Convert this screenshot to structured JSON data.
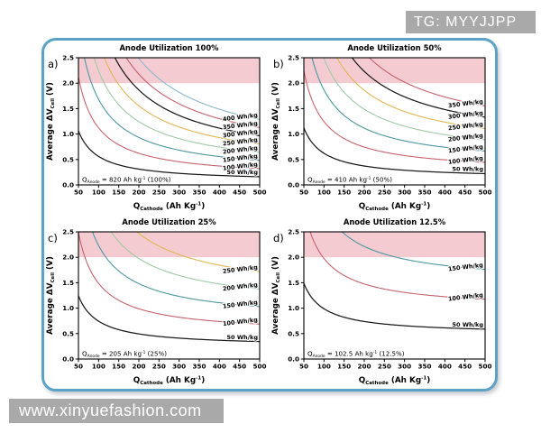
{
  "watermarks": {
    "top": "TG: MYYJJPP",
    "bottom": "www.xinyuefashion.com"
  },
  "figure": {
    "frame_border_color": "#5ba2c6",
    "band_color": "#f4cbd1",
    "band_range_v": [
      2.0,
      2.5
    ]
  },
  "axes_config": {
    "xlim": [
      50,
      500
    ],
    "ylim": [
      0,
      2.5
    ],
    "grid": "off",
    "x_ticks": [
      50,
      100,
      150,
      200,
      250,
      300,
      350,
      400,
      450,
      500
    ],
    "y_ticks": [
      "0.0",
      "0.5",
      "1.0",
      "1.5",
      "2.0",
      "2.5"
    ],
    "xlabel_segments": [
      {
        "t": "Q"
      },
      {
        "t": "Cathode",
        "s": "sub"
      },
      {
        "t": "  (Ah Kg",
        "s": ""
      },
      {
        "t": "-1",
        "s": "sup"
      },
      {
        "t": ")",
        "s": ""
      }
    ],
    "ylabel_segments": [
      {
        "t": "Average ΔV",
        "s": ""
      },
      {
        "t": "Cell",
        "s": "sub"
      },
      {
        "t": "  (V)",
        "s": ""
      }
    ],
    "model": "V_cell = E × (1/Q_cathode + 1/Q_anode)"
  },
  "chart_data": [
    {
      "type": "line",
      "panel_label": "a)",
      "title": "Anode Utilization 100%",
      "q_anode_ah_kg": 820,
      "anode_utilization": "100%",
      "annotation_segments": [
        {
          "t": "Q"
        },
        {
          "t": "Anode",
          "s": "sub"
        },
        {
          "t": " = 820 Ah kg",
          "s": ""
        },
        {
          "t": "-1",
          "s": "sup"
        },
        {
          "t": " (100%)",
          "s": ""
        }
      ],
      "x_samples": [
        50,
        100,
        150,
        200,
        250,
        300,
        350,
        400,
        450,
        500
      ],
      "series": [
        {
          "name": "400 Wh/kg",
          "energy_wh_kg": 400,
          "color": "#8ab8cf",
          "v_samples": [
            8.49,
            4.49,
            3.15,
            2.49,
            2.09,
            1.82,
            1.63,
            1.49,
            1.38,
            1.29
          ]
        },
        {
          "name": "350 Wh/kg",
          "energy_wh_kg": 350,
          "color": "#c5626d",
          "v_samples": [
            7.43,
            3.93,
            2.76,
            2.18,
            1.83,
            1.59,
            1.43,
            1.3,
            1.2,
            1.13
          ]
        },
        {
          "name": "300 Wh/kg",
          "energy_wh_kg": 300,
          "color": "#1a1a1a",
          "v_samples": [
            6.37,
            3.37,
            2.37,
            1.87,
            1.57,
            1.37,
            1.22,
            1.12,
            1.03,
            0.97
          ]
        },
        {
          "name": "250 Wh/kg",
          "energy_wh_kg": 250,
          "color": "#e2b654",
          "v_samples": [
            5.3,
            2.8,
            1.97,
            1.55,
            1.3,
            1.14,
            1.02,
            0.93,
            0.86,
            0.8
          ]
        },
        {
          "name": "200 Wh/kg",
          "energy_wh_kg": 200,
          "color": "#9fcba6",
          "v_samples": [
            4.24,
            2.24,
            1.58,
            1.24,
            1.04,
            0.91,
            0.82,
            0.74,
            0.69,
            0.64
          ]
        },
        {
          "name": "150 Wh/kg",
          "energy_wh_kg": 150,
          "color": "#4d96a2",
          "v_samples": [
            3.18,
            1.68,
            1.18,
            0.93,
            0.78,
            0.68,
            0.61,
            0.56,
            0.52,
            0.48
          ]
        },
        {
          "name": "100 Wh/kg",
          "energy_wh_kg": 100,
          "color": "#c5626d",
          "v_samples": [
            2.12,
            1.12,
            0.79,
            0.62,
            0.52,
            0.46,
            0.41,
            0.37,
            0.34,
            0.32
          ]
        },
        {
          "name": "50 Wh/kg",
          "energy_wh_kg": 50,
          "color": "#1a1a1a",
          "v_samples": [
            1.06,
            0.56,
            0.39,
            0.31,
            0.26,
            0.23,
            0.2,
            0.19,
            0.17,
            0.16
          ]
        }
      ]
    },
    {
      "type": "line",
      "panel_label": "b)",
      "title": "Anode Utilization 50%",
      "q_anode_ah_kg": 410,
      "anode_utilization": "50%",
      "annotation_segments": [
        {
          "t": "Q"
        },
        {
          "t": "Anode",
          "s": "sub"
        },
        {
          "t": " = 410 Ah kg",
          "s": ""
        },
        {
          "t": "-1",
          "s": "sup"
        },
        {
          "t": " (50%)",
          "s": ""
        }
      ],
      "x_samples": [
        50,
        100,
        150,
        200,
        250,
        300,
        350,
        400,
        450,
        500
      ],
      "series": [
        {
          "name": "350 Wh/kg",
          "energy_wh_kg": 350,
          "color": "#c5626d",
          "v_samples": [
            7.85,
            4.35,
            3.19,
            2.6,
            2.25,
            2.02,
            1.85,
            1.73,
            1.63,
            1.55
          ]
        },
        {
          "name": "300 Wh/kg",
          "energy_wh_kg": 300,
          "color": "#1a1a1a",
          "v_samples": [
            6.73,
            3.73,
            2.73,
            2.23,
            1.93,
            1.73,
            1.59,
            1.48,
            1.4,
            1.33
          ]
        },
        {
          "name": "250 Wh/kg",
          "energy_wh_kg": 250,
          "color": "#e2b654",
          "v_samples": [
            5.61,
            3.11,
            2.28,
            1.86,
            1.61,
            1.44,
            1.32,
            1.23,
            1.17,
            1.11
          ]
        },
        {
          "name": "200 Wh/kg",
          "energy_wh_kg": 200,
          "color": "#9fcba6",
          "v_samples": [
            4.49,
            2.49,
            1.82,
            1.49,
            1.29,
            1.15,
            1.06,
            0.99,
            0.93,
            0.89
          ]
        },
        {
          "name": "150 Wh/kg",
          "energy_wh_kg": 150,
          "color": "#4d96a2",
          "v_samples": [
            3.37,
            1.87,
            1.37,
            1.12,
            0.97,
            0.87,
            0.79,
            0.74,
            0.7,
            0.67
          ]
        },
        {
          "name": "100 Wh/kg",
          "energy_wh_kg": 100,
          "color": "#c5626d",
          "v_samples": [
            2.24,
            1.24,
            0.91,
            0.74,
            0.64,
            0.58,
            0.53,
            0.49,
            0.47,
            0.44
          ]
        },
        {
          "name": "50 Wh/kg",
          "energy_wh_kg": 50,
          "color": "#1a1a1a",
          "v_samples": [
            1.12,
            0.62,
            0.46,
            0.37,
            0.32,
            0.29,
            0.26,
            0.25,
            0.23,
            0.22
          ]
        }
      ]
    },
    {
      "type": "line",
      "panel_label": "c)",
      "title": "Anode Utilization 25%",
      "q_anode_ah_kg": 205,
      "anode_utilization": "25%",
      "annotation_segments": [
        {
          "t": "Q"
        },
        {
          "t": "Anode",
          "s": "sub"
        },
        {
          "t": " = 205 Ah kg",
          "s": ""
        },
        {
          "t": "-1",
          "s": "sup"
        },
        {
          "t": " (25%)",
          "s": ""
        }
      ],
      "x_samples": [
        50,
        100,
        150,
        200,
        250,
        300,
        350,
        400,
        450,
        500
      ],
      "series": [
        {
          "name": "250 Wh/kg",
          "energy_wh_kg": 250,
          "color": "#e2b654",
          "v_samples": [
            6.22,
            3.72,
            2.89,
            2.47,
            2.22,
            2.05,
            1.93,
            1.84,
            1.78,
            1.72
          ]
        },
        {
          "name": "200 Wh/kg",
          "energy_wh_kg": 200,
          "color": "#9fcba6",
          "v_samples": [
            4.98,
            2.98,
            2.31,
            1.98,
            1.78,
            1.64,
            1.55,
            1.48,
            1.42,
            1.38
          ]
        },
        {
          "name": "150 Wh/kg",
          "energy_wh_kg": 150,
          "color": "#4d96a2",
          "v_samples": [
            3.73,
            2.23,
            1.73,
            1.48,
            1.33,
            1.23,
            1.16,
            1.11,
            1.07,
            1.03
          ]
        },
        {
          "name": "100 Wh/kg",
          "energy_wh_kg": 100,
          "color": "#c5626d",
          "v_samples": [
            2.49,
            1.49,
            1.15,
            0.99,
            0.89,
            0.82,
            0.77,
            0.74,
            0.71,
            0.69
          ]
        },
        {
          "name": "50 Wh/kg",
          "energy_wh_kg": 50,
          "color": "#1a1a1a",
          "v_samples": [
            1.24,
            0.74,
            0.58,
            0.49,
            0.44,
            0.41,
            0.39,
            0.37,
            0.36,
            0.34
          ]
        }
      ]
    },
    {
      "type": "line",
      "panel_label": "d)",
      "title": "Anode Utilization 12.5%",
      "q_anode_ah_kg": 102.5,
      "anode_utilization": "12.5%",
      "annotation_segments": [
        {
          "t": "Q"
        },
        {
          "t": "Anode",
          "s": "sub"
        },
        {
          "t": " = 102.5 Ah kg",
          "s": ""
        },
        {
          "t": "-1",
          "s": "sup"
        },
        {
          "t": " (12.5%)",
          "s": ""
        }
      ],
      "x_samples": [
        50,
        100,
        150,
        200,
        250,
        300,
        350,
        400,
        450,
        500
      ],
      "series": [
        {
          "name": "150 Wh/kg",
          "energy_wh_kg": 150,
          "color": "#4d96a2",
          "v_samples": [
            4.46,
            2.96,
            2.46,
            2.21,
            2.06,
            1.96,
            1.89,
            1.84,
            1.8,
            1.76
          ]
        },
        {
          "name": "100 Wh/kg",
          "energy_wh_kg": 100,
          "color": "#c5626d",
          "v_samples": [
            2.98,
            1.98,
            1.64,
            1.48,
            1.38,
            1.31,
            1.26,
            1.23,
            1.2,
            1.18
          ]
        },
        {
          "name": "50 Wh/kg",
          "energy_wh_kg": 50,
          "color": "#1a1a1a",
          "v_samples": [
            1.49,
            0.99,
            0.82,
            0.74,
            0.69,
            0.65,
            0.63,
            0.61,
            0.6,
            0.59
          ]
        }
      ]
    }
  ]
}
